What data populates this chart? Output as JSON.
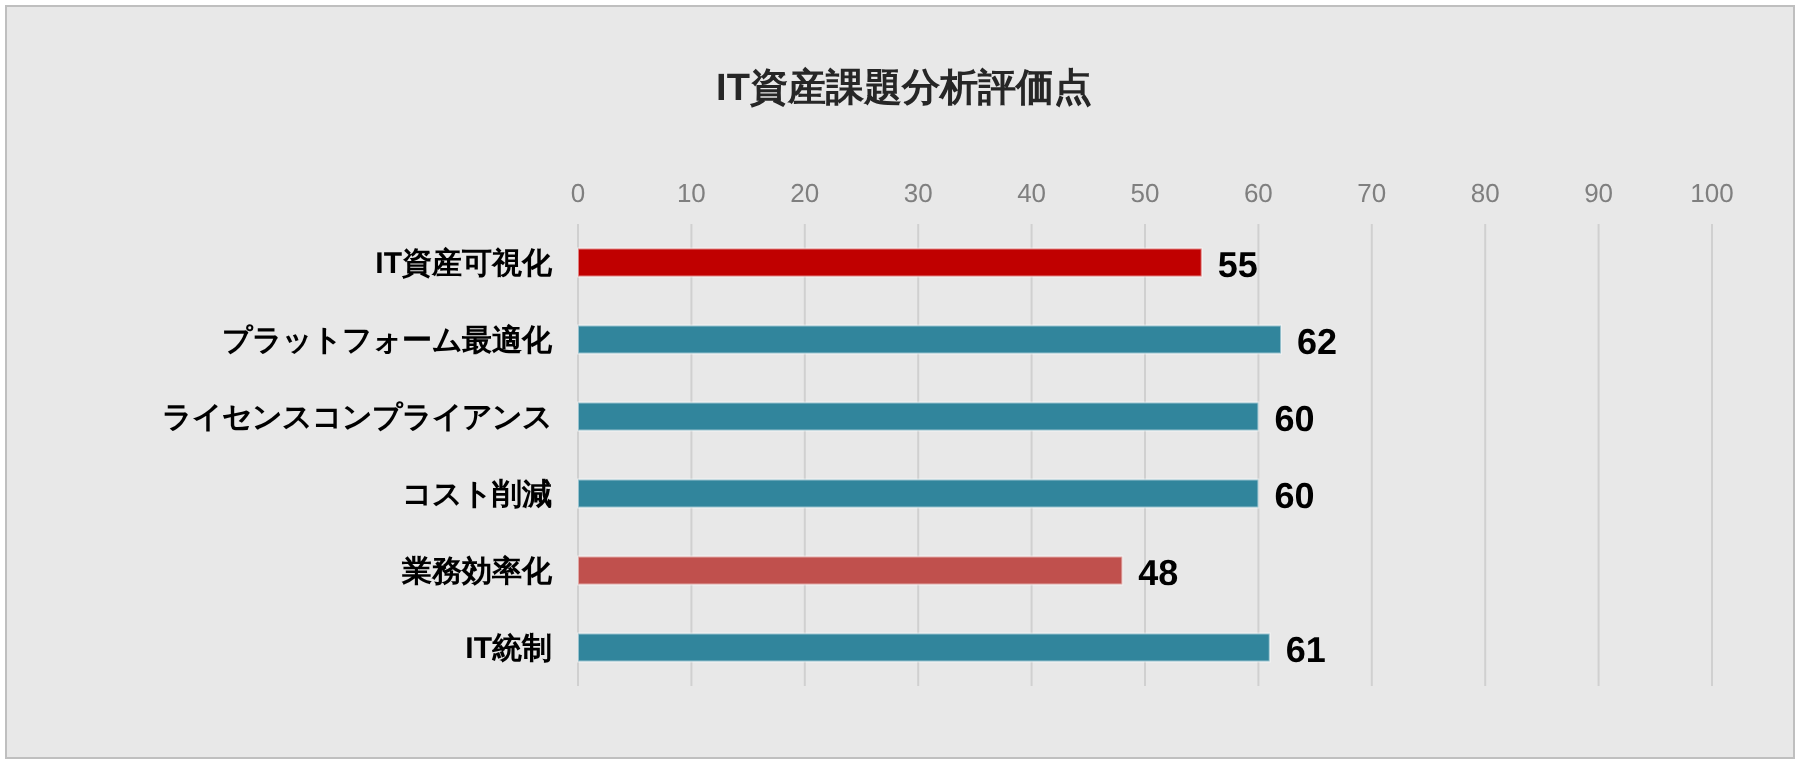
{
  "chart_data": {
    "type": "bar",
    "orientation": "horizontal",
    "title": "IT資産課題分析評価点",
    "categories": [
      "IT資産可視化",
      "プラットフォーム最適化",
      "ライセンスコンプライアンス",
      "コスト削減",
      "業務効率化",
      "IT統制"
    ],
    "values": [
      55,
      62,
      60,
      60,
      48,
      61
    ],
    "colors": [
      "#c00000",
      "#31859c",
      "#31859c",
      "#31859c",
      "#c0504d",
      "#31859c"
    ],
    "xlim": [
      0,
      100
    ],
    "xticks": [
      0,
      10,
      20,
      30,
      40,
      50,
      60,
      70,
      80,
      90,
      100
    ],
    "grid": "x",
    "data_labels": true
  }
}
